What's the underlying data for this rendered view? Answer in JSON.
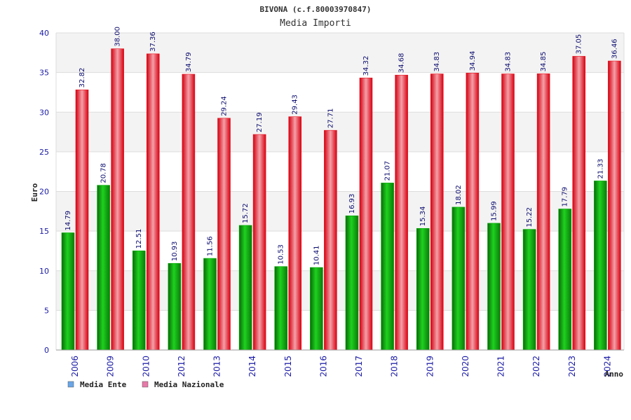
{
  "colors": {
    "ente": "#00a800",
    "nazionale": "#e8121e",
    "legend_ente": "#6aa6e8",
    "legend_nazionale": "#e87aa8",
    "band": "#f3f3f3",
    "axis_text": "#1a1aa6"
  },
  "chart_data": {
    "type": "bar",
    "title": "BIVONA (c.f.80003970847)",
    "subtitle": "Media Importi",
    "xlabel": "Anno",
    "ylabel": "Euro",
    "ylim": [
      0,
      40
    ],
    "yticks": [
      "0",
      "5",
      "10",
      "15",
      "20",
      "25",
      "30",
      "35",
      "40"
    ],
    "categories": [
      "2006",
      "2009",
      "2010",
      "2012",
      "2013",
      "2014",
      "2015",
      "2016",
      "2017",
      "2018",
      "2019",
      "2020",
      "2021",
      "2022",
      "2023",
      "2024"
    ],
    "series": [
      {
        "name": "Media Ente",
        "values": [
          14.79,
          20.78,
          12.51,
          10.93,
          11.56,
          15.72,
          10.53,
          10.41,
          16.93,
          21.07,
          15.34,
          18.02,
          15.99,
          15.22,
          17.79,
          21.33
        ],
        "labels": [
          "14.79",
          "20.78",
          "12.51",
          "10.93",
          "11.56",
          "15.72",
          "10.53",
          "10.41",
          "16.93",
          "21.07",
          "15.34",
          "18.02",
          "15.99",
          "15.22",
          "17.79",
          "21.33"
        ]
      },
      {
        "name": "Media Nazionale",
        "values": [
          32.82,
          38.0,
          37.36,
          34.79,
          29.24,
          27.19,
          29.43,
          27.71,
          34.32,
          34.68,
          34.83,
          34.94,
          34.83,
          34.85,
          37.05,
          36.46
        ],
        "labels": [
          "32.82",
          "38.00",
          "37.36",
          "34.79",
          "29.24",
          "27.19",
          "29.43",
          "27.71",
          "34.32",
          "34.68",
          "34.83",
          "34.94",
          "34.83",
          "34.85",
          "37.05",
          "36.46"
        ]
      }
    ],
    "legend": [
      "Media Ente",
      "Media Nazionale"
    ],
    "legend_position": "bottom-left",
    "grid": true
  }
}
